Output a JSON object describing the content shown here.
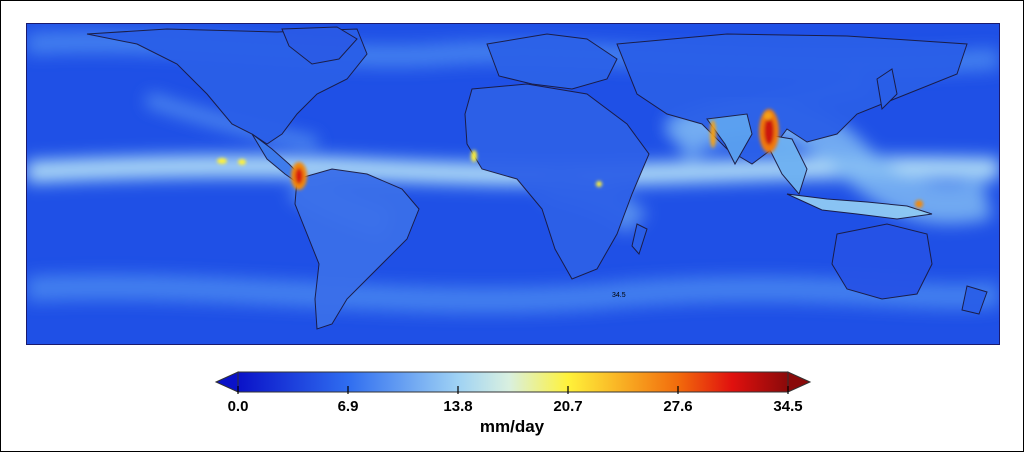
{
  "figure": {
    "kind": "precipitation-map",
    "projection": "equirectangular",
    "map_annotation": "34.5"
  },
  "colorbar": {
    "ticks": [
      "0.0",
      "6.9",
      "13.8",
      "20.7",
      "27.6",
      "34.5"
    ],
    "min": 0.0,
    "max": 34.5,
    "units": "mm/day",
    "extend": "both",
    "color_stops": [
      {
        "value": 0.0,
        "color": "#0a12c8"
      },
      {
        "value": 6.9,
        "color": "#2f6df0"
      },
      {
        "value": 13.8,
        "color": "#9fd2f4"
      },
      {
        "value": 17.0,
        "color": "#d9f0e0"
      },
      {
        "value": 20.7,
        "color": "#fff23a"
      },
      {
        "value": 27.6,
        "color": "#f26b0c"
      },
      {
        "value": 31.0,
        "color": "#e0100e"
      },
      {
        "value": 34.5,
        "color": "#8a0a0a"
      }
    ],
    "under_color": "#0a12c8",
    "over_color": "#8a0a0a"
  }
}
